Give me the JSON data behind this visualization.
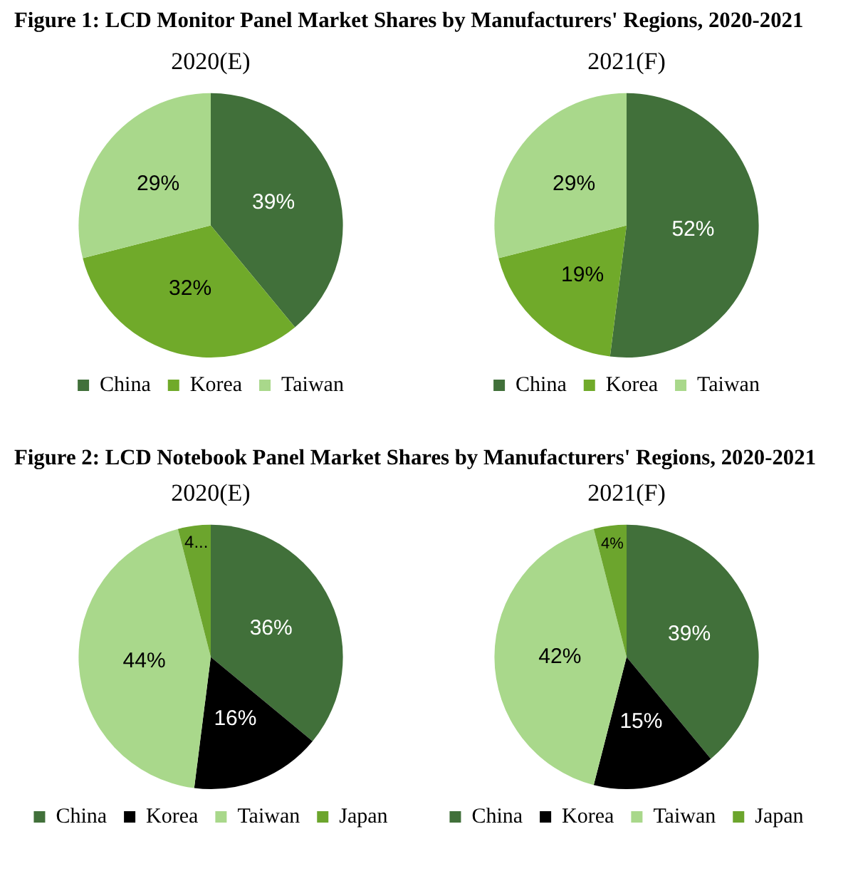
{
  "chart_data": [
    {
      "type": "pie",
      "title": "Figure 1: LCD Monitor Panel Market Shares by Manufacturers' Regions, 2020-2021",
      "subtitle": "2020(E)",
      "categories": [
        "China",
        "Korea",
        "Taiwan"
      ],
      "values": [
        39,
        32,
        29
      ],
      "colors": [
        "#41703a",
        "#70aa2a",
        "#a9d88b"
      ],
      "value_labels": [
        "39%",
        "32%",
        "29%"
      ],
      "legend": "bottom"
    },
    {
      "type": "pie",
      "subtitle": "2021(F)",
      "categories": [
        "China",
        "Korea",
        "Taiwan"
      ],
      "values": [
        52,
        19,
        29
      ],
      "colors": [
        "#41703a",
        "#70aa2a",
        "#a9d88b"
      ],
      "value_labels": [
        "52%",
        "19%",
        "29%"
      ],
      "legend": "bottom"
    },
    {
      "type": "pie",
      "title": "Figure 2: LCD Notebook Panel Market Shares by Manufacturers' Regions, 2020-2021",
      "subtitle": "2020(E)",
      "categories": [
        "China",
        "Korea",
        "Taiwan",
        "Japan"
      ],
      "values": [
        36,
        16,
        44,
        4
      ],
      "colors": [
        "#41703a",
        "#000000",
        "#a9d88b",
        "#6ca52d"
      ],
      "value_labels": [
        "36%",
        "16%",
        "44%",
        "4..."
      ],
      "legend": "bottom"
    },
    {
      "type": "pie",
      "subtitle": "2021(F)",
      "categories": [
        "China",
        "Korea",
        "Taiwan",
        "Japan"
      ],
      "values": [
        39,
        15,
        42,
        4
      ],
      "colors": [
        "#41703a",
        "#000000",
        "#a9d88b",
        "#6ca52d"
      ],
      "value_labels": [
        "39%",
        "15%",
        "42%",
        "4%"
      ],
      "legend": "bottom"
    }
  ]
}
